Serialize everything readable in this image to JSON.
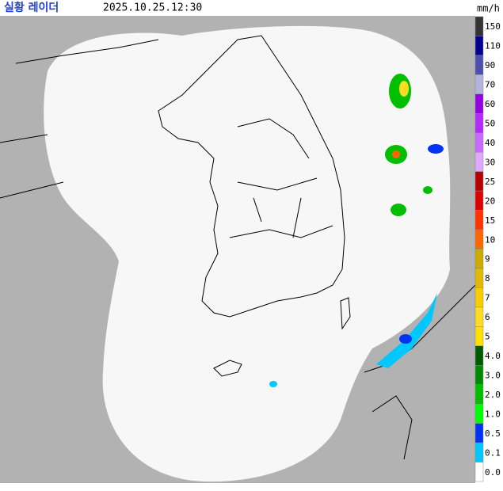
{
  "header": {
    "title": "실황 레이더",
    "time": "2025.10.25.12:30"
  },
  "legend": {
    "unit": "mm/h",
    "items": [
      {
        "label": "150",
        "color": "#333333"
      },
      {
        "label": "110",
        "color": "#000390"
      },
      {
        "label": "90",
        "color": "#4c4eb1"
      },
      {
        "label": "70",
        "color": "#b3b4de"
      },
      {
        "label": "60",
        "color": "#9300e4"
      },
      {
        "label": "50",
        "color": "#b329ff"
      },
      {
        "label": "40",
        "color": "#c969ff"
      },
      {
        "label": "30",
        "color": "#e0a9ff"
      },
      {
        "label": "25",
        "color": "#b40000"
      },
      {
        "label": "20",
        "color": "#e00000"
      },
      {
        "label": "15",
        "color": "#ff3300"
      },
      {
        "label": "10",
        "color": "#ff6600"
      },
      {
        "label": "9",
        "color": "#ccaa00"
      },
      {
        "label": "8",
        "color": "#e0b900"
      },
      {
        "label": "7",
        "color": "#f9cd00"
      },
      {
        "label": "6",
        "color": "#ffdc1f"
      },
      {
        "label": "5",
        "color": "#ffe100"
      },
      {
        "label": "4.0",
        "color": "#005a00"
      },
      {
        "label": "3.0",
        "color": "#008c00"
      },
      {
        "label": "2.0",
        "color": "#00be00"
      },
      {
        "label": "1.0",
        "color": "#00ff00"
      },
      {
        "label": "0.5",
        "color": "#0033f5"
      },
      {
        "label": "0.1",
        "color": "#00c8ff"
      },
      {
        "label": "0.0",
        "color": "#ffffff"
      }
    ]
  }
}
